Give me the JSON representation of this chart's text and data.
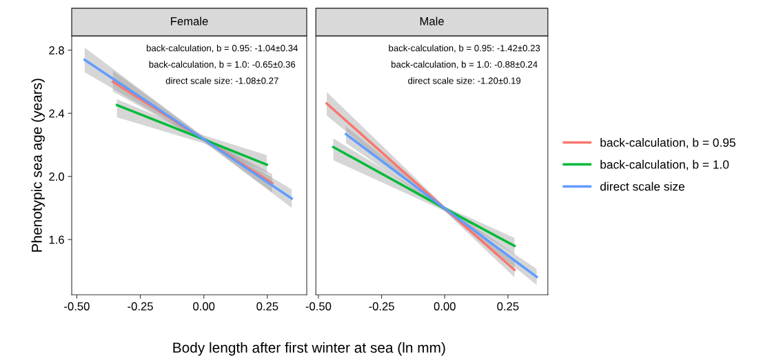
{
  "chart_data": [
    {
      "type": "line",
      "title": "Female",
      "legend": "right",
      "ylabel": "Phenotypic sea age (years)",
      "xlabel": "Body length after first winter at sea (ln mm)",
      "xlim": [
        -0.52,
        0.405
      ],
      "xticks": [
        {
          "value": -0.5,
          "label": "-0.50"
        },
        {
          "value": -0.25,
          "label": "-0.25"
        },
        {
          "value": 0,
          "label": "0.00"
        },
        {
          "value": 0.25,
          "label": "0.25"
        }
      ],
      "ylim": [
        1.25,
        2.89
      ],
      "yticks": [
        {
          "value": 1.6,
          "label": "1.6"
        },
        {
          "value": 2.0,
          "label": "2.0"
        },
        {
          "value": 2.4,
          "label": "2.4"
        },
        {
          "value": 2.8,
          "label": "2.8"
        }
      ],
      "grid": false,
      "line_style": "solid",
      "marker": "none",
      "annotations": [
        "back-calculation, b = 0.95: -1.04±0.34",
        "back-calculation, b = 1.0: -0.65±0.36",
        "direct scale size: -1.08±0.27"
      ],
      "series": [
        {
          "name": "back-calculation, b = 0.95",
          "color": "#f8766d",
          "x": [
            -0.358,
            0,
            0.269
          ],
          "values": [
            2.6,
            2.234,
            1.957
          ],
          "lower": [
            2.539,
            2.22,
            1.899
          ],
          "upper": [
            2.671,
            2.25,
            2.015
          ]
        },
        {
          "name": "back-calculation, b = 1.0",
          "color": "#00ba38",
          "x": [
            -0.342,
            0,
            0.248
          ],
          "values": [
            2.452,
            2.234,
            2.074
          ],
          "lower": [
            2.375,
            2.21,
            2.023
          ],
          "upper": [
            2.489,
            2.26,
            2.135
          ]
        },
        {
          "name": "direct scale size",
          "color": "#619cff",
          "x": [
            -0.469,
            0,
            0.346
          ],
          "values": [
            2.739,
            2.234,
            1.86
          ],
          "lower": [
            2.66,
            2.22,
            1.801
          ],
          "upper": [
            2.816,
            2.25,
            1.918
          ]
        }
      ]
    },
    {
      "type": "line",
      "title": "Male",
      "tick_labels": "x",
      "xlim": [
        -0.51,
        0.408
      ],
      "xticks": [
        {
          "value": -0.5,
          "label": "-0.50"
        },
        {
          "value": -0.25,
          "label": "-0.25"
        },
        {
          "value": 0,
          "label": "0.00"
        },
        {
          "value": 0.25,
          "label": "0.25"
        }
      ],
      "ylim": [
        1.25,
        2.89
      ],
      "grid": false,
      "line_style": "solid",
      "marker": "none",
      "annotations": [
        "back-calculation, b = 0.95: -1.42±0.23",
        "back-calculation, b = 1.0: -0.88±0.24",
        "direct scale size: -1.20±0.19"
      ],
      "series": [
        {
          "color": "#f8766d",
          "x": [
            -0.467,
            0,
            0.276
          ],
          "values": [
            2.462,
            1.797,
            1.408
          ],
          "lower": [
            2.384,
            1.78,
            1.36
          ],
          "upper": [
            2.535,
            1.81,
            1.455
          ]
        },
        {
          "color": "#00ba38",
          "x": [
            -0.441,
            0,
            0.276
          ],
          "values": [
            2.186,
            1.797,
            1.56
          ],
          "lower": [
            2.103,
            1.78,
            1.505
          ],
          "upper": [
            2.241,
            1.81,
            1.611
          ]
        },
        {
          "color": "#619cff",
          "x": [
            -0.391,
            0,
            0.364
          ],
          "values": [
            2.268,
            1.797,
            1.363
          ],
          "lower": [
            2.212,
            1.78,
            1.312
          ],
          "upper": [
            2.317,
            1.81,
            1.413
          ]
        }
      ]
    }
  ]
}
